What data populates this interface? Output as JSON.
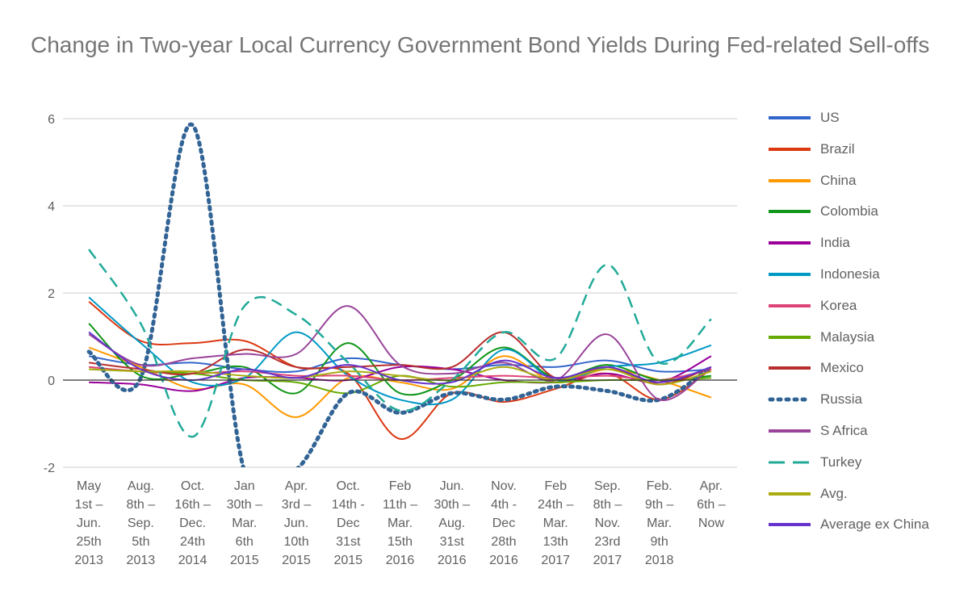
{
  "chart_data": {
    "type": "line",
    "title": "Change in Two-year Local Currency Government Bond Yields During Fed-related Sell-offs",
    "xlabel": "",
    "ylabel": "",
    "ylim": [
      -2,
      6
    ],
    "yticks": [
      -2,
      0,
      2,
      4,
      6
    ],
    "grid": true,
    "legend_position": "right",
    "categories": [
      "May 1st – Jun. 25th 2013",
      "Aug. 8th – Sep. 5th 2013",
      "Oct. 16th – Dec. 24th 2014",
      "Jan 30th – Mar. 6th 2015",
      "Apr. 3rd – Jun. 10th 2015",
      "Oct. 14th - Dec 31st 2015",
      "Feb 11th – Mar. 15th 2016",
      "Jun. 30th – Aug. 31st 2016",
      "Nov. 4th - Dec 28th 2016",
      "Feb 24th – Mar. 13th 2017",
      "Sep. 8th – Nov. 23rd 2017",
      "Feb. 9th – Mar. 9th 2018",
      "Apr. 6th – Now"
    ],
    "category_lines": [
      [
        "May",
        "1st –",
        "Jun.",
        "25th",
        "2013"
      ],
      [
        "Aug.",
        "8th –",
        "Sep.",
        "5th",
        "2013"
      ],
      [
        "Oct.",
        "16th –",
        "Dec.",
        "24th",
        "2014"
      ],
      [
        "Jan",
        "30th –",
        "Mar.",
        "6th",
        "2015"
      ],
      [
        "Apr.",
        "3rd –",
        "Jun.",
        "10th",
        "2015"
      ],
      [
        "Oct.",
        "14th -",
        "Dec",
        "31st",
        "2015"
      ],
      [
        "Feb",
        "11th –",
        "Mar.",
        "15th",
        "2016"
      ],
      [
        "Jun.",
        "30th –",
        "Aug.",
        "31st",
        "2016"
      ],
      [
        "Nov.",
        "4th -",
        "Dec",
        "28th",
        "2016"
      ],
      [
        "Feb",
        "24th –",
        "Mar.",
        "13th",
        "2017"
      ],
      [
        "Sep.",
        "8th –",
        "Nov.",
        "23rd",
        "2017"
      ],
      [
        "Feb.",
        "9th –",
        "Mar.",
        "9th",
        "2018"
      ],
      [
        "Apr.",
        "6th –",
        "Now"
      ]
    ],
    "series": [
      {
        "name": "US",
        "color": "#3366cc",
        "dash": "solid",
        "values": [
          0.55,
          0.35,
          0.4,
          0.25,
          0.2,
          0.5,
          0.35,
          0.25,
          0.35,
          0.3,
          0.45,
          0.2,
          0.25
        ]
      },
      {
        "name": "Brazil",
        "color": "#dc3912",
        "dash": "solid",
        "values": [
          1.8,
          0.9,
          0.85,
          0.9,
          0.3,
          0.15,
          -1.35,
          -0.3,
          -0.5,
          -0.2,
          0.15,
          -0.45,
          0.25
        ]
      },
      {
        "name": "China",
        "color": "#ff9900",
        "dash": "solid",
        "values": [
          0.75,
          0.3,
          -0.2,
          -0.1,
          -0.85,
          0.05,
          -0.05,
          -0.2,
          0.55,
          -0.05,
          0.25,
          0.0,
          -0.4
        ]
      },
      {
        "name": "Colombia",
        "color": "#109618",
        "dash": "solid",
        "values": [
          1.3,
          0.1,
          0.15,
          0.3,
          -0.3,
          0.85,
          -0.3,
          0.0,
          0.75,
          0.05,
          0.35,
          0.0,
          0.1
        ]
      },
      {
        "name": "India",
        "color": "#990099",
        "dash": "solid",
        "values": [
          -0.05,
          -0.1,
          -0.25,
          0.05,
          0.05,
          0.0,
          0.3,
          0.25,
          0.0,
          -0.05,
          0.15,
          -0.05,
          0.55
        ]
      },
      {
        "name": "Indonesia",
        "color": "#0099c6",
        "dash": "solid",
        "values": [
          1.9,
          0.85,
          -0.05,
          0.05,
          1.1,
          0.1,
          -0.45,
          -0.45,
          0.7,
          0.0,
          0.3,
          0.4,
          0.8
        ]
      },
      {
        "name": "Korea",
        "color": "#dd4477",
        "dash": "solid",
        "values": [
          0.3,
          0.2,
          0.15,
          0.2,
          0.1,
          0.1,
          0.0,
          0.05,
          0.1,
          0.05,
          0.1,
          0.0,
          0.25
        ]
      },
      {
        "name": "Malaysia",
        "color": "#66aa00",
        "dash": "solid",
        "values": [
          0.25,
          0.2,
          0.15,
          0.0,
          -0.05,
          -0.3,
          0.1,
          -0.15,
          -0.05,
          -0.05,
          0.0,
          0.0,
          0.05
        ]
      },
      {
        "name": "Mexico",
        "color": "#b82e2e",
        "dash": "solid",
        "values": [
          0.4,
          0.25,
          0.15,
          0.7,
          0.3,
          0.3,
          0.35,
          0.3,
          1.1,
          0.05,
          0.3,
          -0.1,
          0.3
        ]
      },
      {
        "name": "Russia",
        "color": "#316395",
        "dash": "dotted",
        "values": [
          0.65,
          0.05,
          5.85,
          -2.1,
          -2.05,
          -0.3,
          -0.75,
          -0.3,
          -0.45,
          -0.15,
          -0.25,
          -0.45,
          0.3
        ]
      },
      {
        "name": "S Africa",
        "color": "#994499",
        "dash": "solid",
        "values": [
          1.05,
          0.35,
          0.5,
          0.6,
          0.6,
          1.7,
          0.35,
          0.15,
          0.4,
          0.0,
          1.05,
          -0.45,
          0.3
        ]
      },
      {
        "name": "Turkey",
        "color": "#22aa99",
        "dash": "dashed",
        "values": [
          3.0,
          1.3,
          -1.3,
          1.7,
          1.5,
          0.4,
          -0.7,
          0.0,
          1.1,
          0.5,
          2.65,
          0.4,
          1.4
        ]
      },
      {
        "name": "Avg.",
        "color": "#aaaa11",
        "dash": "solid",
        "values": [
          0.25,
          0.2,
          0.2,
          0.1,
          0.05,
          0.2,
          0.1,
          0.0,
          0.3,
          0.0,
          0.25,
          -0.1,
          0.2
        ]
      },
      {
        "name": "Average ex China",
        "color": "#6633cc",
        "dash": "solid",
        "values": [
          1.1,
          0.25,
          0.0,
          0.25,
          0.05,
          0.35,
          0.0,
          -0.05,
          0.45,
          0.05,
          0.3,
          -0.05,
          0.3
        ]
      }
    ]
  }
}
